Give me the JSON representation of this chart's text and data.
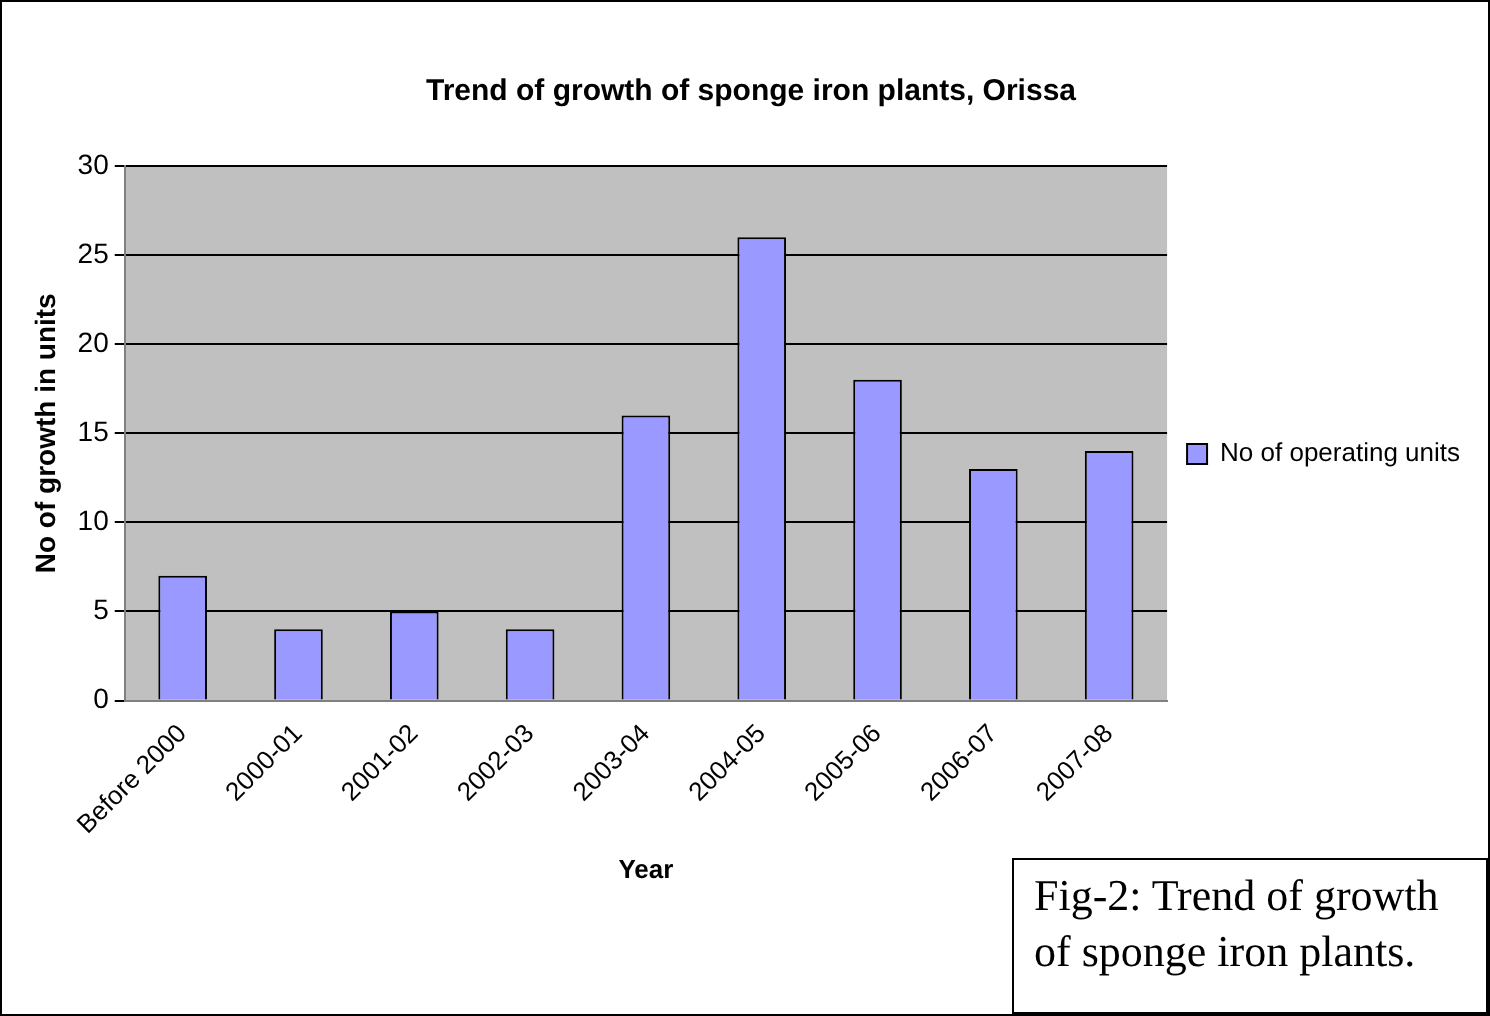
{
  "chart_data": {
    "type": "bar",
    "title": "Trend of growth of sponge iron plants, Orissa",
    "xlabel": "Year",
    "ylabel": "No of growth in units",
    "categories": [
      "Before 2000",
      "2000-01",
      "2001-02",
      "2002-03",
      "2003-04",
      "2004-05",
      "2005-06",
      "2006-07",
      "2007-08"
    ],
    "series": [
      {
        "name": "No of operating units",
        "color": "#9999ff",
        "values": [
          7,
          4,
          5,
          4,
          16,
          26,
          18,
          13,
          14
        ]
      }
    ],
    "ylim": [
      0,
      30
    ],
    "yticks": [
      0,
      5,
      10,
      15,
      20,
      25,
      30
    ],
    "grid": "y",
    "legend": "right",
    "annotations": [
      "Fig-2: Trend of growth of sponge iron plants."
    ]
  }
}
